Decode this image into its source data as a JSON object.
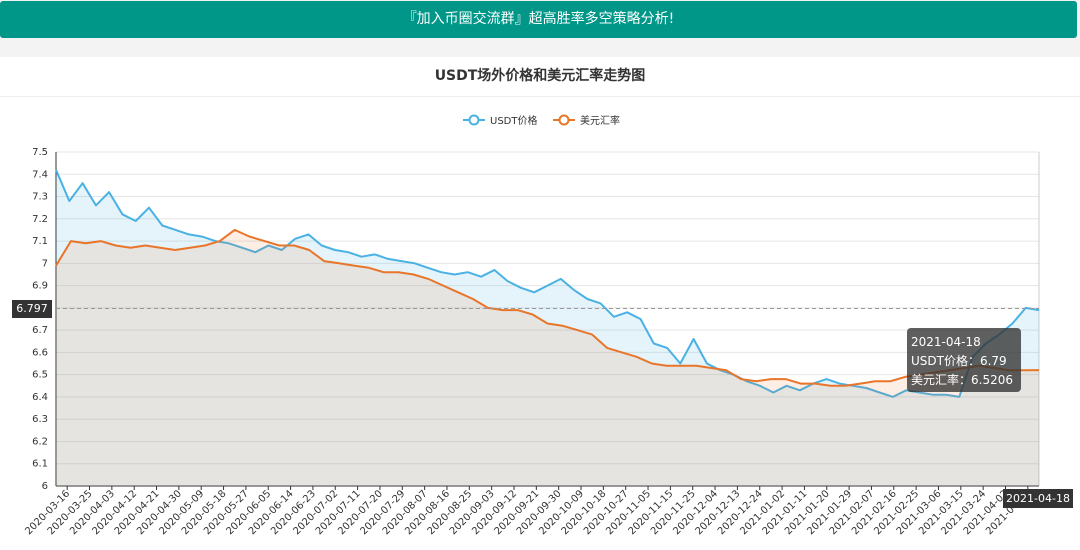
{
  "banner": {
    "text": "『加入币圈交流群』超高胜率多空策略分析!"
  },
  "chart_data": {
    "type": "line",
    "title": "USDT场外价格和美元汇率走势图",
    "ylim": [
      6,
      7.5
    ],
    "yticks": [
      "7.5",
      "7.4",
      "7.3",
      "7.2",
      "7.1",
      "7",
      "6.9",
      "6.8",
      "6.7",
      "6.6",
      "6.5",
      "6.4",
      "6.3",
      "6.2",
      "6.1",
      "6"
    ],
    "xlabels": [
      "2020-03-16",
      "2020-03-25",
      "2020-04-03",
      "2020-04-12",
      "2020-04-21",
      "2020-04-30",
      "2020-05-09",
      "2020-05-18",
      "2020-05-27",
      "2020-06-05",
      "2020-06-14",
      "2020-06-23",
      "2020-07-02",
      "2020-07-11",
      "2020-07-20",
      "2020-07-29",
      "2020-08-07",
      "2020-08-16",
      "2020-08-25",
      "2020-09-03",
      "2020-09-12",
      "2020-09-21",
      "2020-09-30",
      "2020-10-09",
      "2020-10-18",
      "2020-10-27",
      "2020-11-05",
      "2020-11-15",
      "2020-11-25",
      "2020-12-04",
      "2020-12-13",
      "2020-12-24",
      "2021-01-02",
      "2021-01-11",
      "2021-01-20",
      "2021-01-29",
      "2021-02-07",
      "2021-02-16",
      "2021-02-25",
      "2021-03-06",
      "2021-03-15",
      "2021-03-24",
      "2021-04-02",
      "2021-04-11"
    ],
    "legend_position": "top-center",
    "grid": true,
    "series": [
      {
        "name": "USDT价格",
        "color": "#4ab1e4",
        "values": [
          7.42,
          7.28,
          7.36,
          7.26,
          7.32,
          7.22,
          7.19,
          7.25,
          7.17,
          7.15,
          7.13,
          7.12,
          7.1,
          7.09,
          7.07,
          7.05,
          7.08,
          7.06,
          7.11,
          7.13,
          7.08,
          7.06,
          7.05,
          7.03,
          7.04,
          7.02,
          7.01,
          7.0,
          6.98,
          6.96,
          6.95,
          6.96,
          6.94,
          6.97,
          6.92,
          6.89,
          6.87,
          6.9,
          6.93,
          6.88,
          6.84,
          6.82,
          6.76,
          6.78,
          6.75,
          6.64,
          6.62,
          6.55,
          6.66,
          6.55,
          6.52,
          6.5,
          6.47,
          6.45,
          6.42,
          6.45,
          6.43,
          6.46,
          6.48,
          6.46,
          6.45,
          6.44,
          6.42,
          6.4,
          6.43,
          6.42,
          6.41,
          6.41,
          6.4,
          6.58,
          6.64,
          6.68,
          6.73,
          6.8,
          6.79
        ]
      },
      {
        "name": "美元汇率",
        "color": "#e8752a",
        "values": [
          6.99,
          7.1,
          7.09,
          7.1,
          7.08,
          7.07,
          7.08,
          7.07,
          7.06,
          7.07,
          7.08,
          7.1,
          7.15,
          7.12,
          7.1,
          7.08,
          7.08,
          7.06,
          7.01,
          7.0,
          6.99,
          6.98,
          6.96,
          6.96,
          6.95,
          6.93,
          6.9,
          6.87,
          6.84,
          6.8,
          6.79,
          6.79,
          6.77,
          6.73,
          6.72,
          6.7,
          6.68,
          6.62,
          6.6,
          6.58,
          6.55,
          6.54,
          6.54,
          6.54,
          6.53,
          6.52,
          6.48,
          6.47,
          6.48,
          6.48,
          6.46,
          6.46,
          6.45,
          6.45,
          6.46,
          6.47,
          6.47,
          6.49,
          6.5,
          6.51,
          6.52,
          6.53,
          6.54,
          6.53,
          6.52,
          6.52,
          6.5206
        ]
      }
    ],
    "crosshair": {
      "y_value": "6.797",
      "x_label": "2021-04-18"
    },
    "tooltip": {
      "date": "2021-04-18",
      "usdt_label": "USDT价格：6.79",
      "fx_label": "美元汇率：6.5206"
    }
  }
}
